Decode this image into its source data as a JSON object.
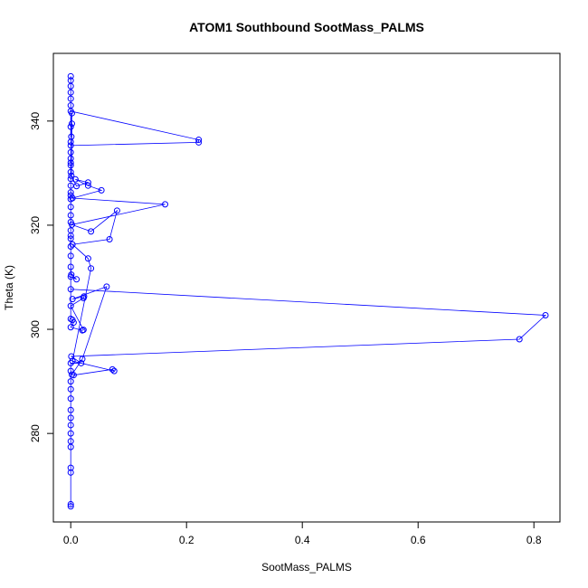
{
  "chart_data": {
    "type": "scatter",
    "title": "ATOM1 Southbound SootMass_PALMS",
    "xlabel": "SootMass_PALMS",
    "ylabel": "Theta (K)",
    "xlim": [
      -0.03,
      0.845
    ],
    "ylim": [
      263,
      353
    ],
    "xticks": [
      0.0,
      0.2,
      0.4,
      0.6,
      0.8
    ],
    "yticks": [
      280,
      300,
      320,
      340
    ],
    "xtick_labels": [
      "0.0",
      "0.2",
      "0.4",
      "0.6",
      "0.8"
    ],
    "ytick_labels": [
      "280",
      "300",
      "320",
      "340"
    ],
    "grid": false,
    "legend": "none",
    "series_color": "#0000ff",
    "marker": "open-circle",
    "line": true,
    "points": [
      [
        0.0,
        266.0
      ],
      [
        0.0,
        266.4
      ],
      [
        0.0,
        272.5
      ],
      [
        0.0,
        273.4
      ],
      [
        0.0,
        277.4
      ],
      [
        0.0,
        278.5
      ],
      [
        0.0,
        280.0
      ],
      [
        0.0,
        281.6
      ],
      [
        0.0,
        283.0
      ],
      [
        0.0,
        284.5
      ],
      [
        0.0,
        286.7
      ],
      [
        0.0,
        288.5
      ],
      [
        0.0,
        290.0
      ],
      [
        0.0,
        292.0
      ],
      [
        0.0,
        293.5
      ],
      [
        0.018,
        293.5
      ],
      [
        0.001,
        294.8
      ],
      [
        0.775,
        298.1
      ],
      [
        0.82,
        302.7
      ],
      [
        0.0,
        307.7
      ],
      [
        0.0,
        310.1
      ],
      [
        0.01,
        309.6
      ],
      [
        0.001,
        310.5
      ],
      [
        0.0,
        312.0
      ],
      [
        0.0,
        314.1
      ],
      [
        0.0,
        315.9
      ],
      [
        0.0,
        317.4
      ],
      [
        0.0,
        319.0
      ],
      [
        0.0,
        320.6
      ],
      [
        0.0,
        321.9
      ],
      [
        0.0,
        323.5
      ],
      [
        0.0,
        325.0
      ],
      [
        0.0,
        326.3
      ],
      [
        0.0,
        327.6
      ],
      [
        0.0,
        328.9
      ],
      [
        0.0,
        330.2
      ],
      [
        0.0,
        331.5
      ],
      [
        0.0,
        332.8
      ],
      [
        0.0,
        334.0
      ],
      [
        0.0,
        335.3
      ],
      [
        0.221,
        335.9
      ],
      [
        0.221,
        336.4
      ],
      [
        0.0,
        341.9
      ],
      [
        0.0,
        343.0
      ],
      [
        0.0,
        344.3
      ],
      [
        0.0,
        345.5
      ],
      [
        0.0,
        346.7
      ],
      [
        0.0,
        347.8
      ],
      [
        0.0,
        348.6
      ],
      [
        0.0,
        302.0
      ],
      [
        0.003,
        301.8
      ],
      [
        0.005,
        301.3
      ],
      [
        0.0,
        300.4
      ],
      [
        0.02,
        299.8
      ],
      [
        0.022,
        299.9
      ],
      [
        0.0,
        304.5
      ],
      [
        0.022,
        306.0
      ],
      [
        0.023,
        306.3
      ],
      [
        0.003,
        305.8
      ],
      [
        0.062,
        308.2
      ],
      [
        0.02,
        294.3
      ],
      [
        0.002,
        291.3
      ],
      [
        0.005,
        291.2
      ],
      [
        0.072,
        292.3
      ],
      [
        0.075,
        292.0
      ],
      [
        0.003,
        293.9
      ],
      [
        0.035,
        311.7
      ],
      [
        0.03,
        313.6
      ],
      [
        0.003,
        316.3
      ],
      [
        0.067,
        317.3
      ],
      [
        0.08,
        322.8
      ],
      [
        0.035,
        318.8
      ],
      [
        0.002,
        320.1
      ],
      [
        0.163,
        324.0
      ],
      [
        0.003,
        325.2
      ],
      [
        0.053,
        326.7
      ],
      [
        0.03,
        327.6
      ],
      [
        0.008,
        328.8
      ],
      [
        0.03,
        328.2
      ],
      [
        0.01,
        327.5
      ],
      [
        0.001,
        329.5
      ],
      [
        0.002,
        339.5
      ],
      [
        0.001,
        337.0
      ],
      [
        0.002,
        341.5
      ],
      [
        0.0,
        338.9
      ],
      [
        0.0,
        336.0
      ],
      [
        0.0,
        332.0
      ],
      [
        0.0,
        325.7
      ],
      [
        0.0,
        318.0
      ]
    ]
  }
}
